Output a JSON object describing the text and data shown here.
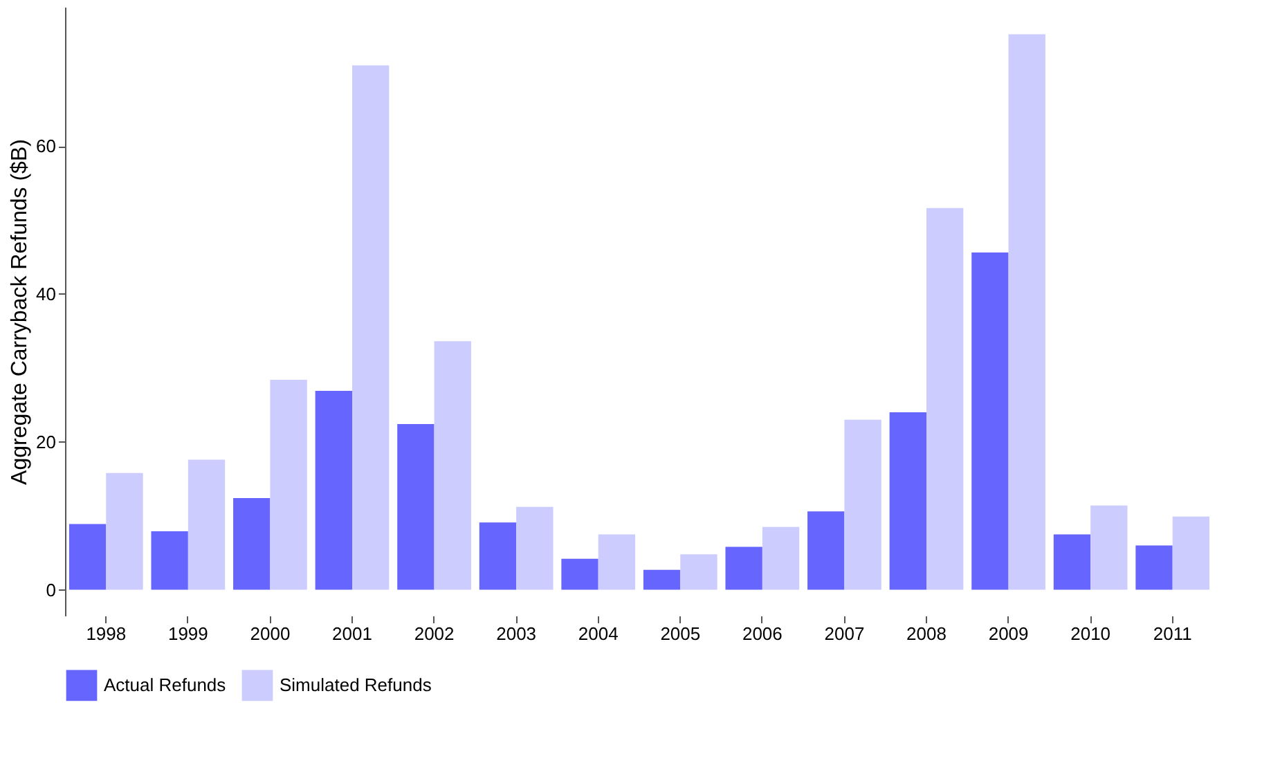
{
  "chart_data": {
    "type": "bar",
    "ylabel": "Aggregate Carryback Refunds ($B)",
    "categories": [
      "1998",
      "1999",
      "2000",
      "2001",
      "2002",
      "2003",
      "2004",
      "2005",
      "2006",
      "2007",
      "2008",
      "2009",
      "2010",
      "2011"
    ],
    "series": [
      {
        "name": "Actual Refunds",
        "color": "#6666ff",
        "values": [
          8.9,
          7.9,
          12.4,
          26.9,
          22.4,
          9.1,
          4.2,
          2.7,
          5.8,
          10.6,
          24.0,
          45.6,
          7.5,
          6.0
        ]
      },
      {
        "name": "Simulated Refunds",
        "color": "#ccccff",
        "values": [
          15.8,
          17.6,
          28.4,
          70.9,
          33.6,
          11.2,
          7.5,
          4.8,
          8.5,
          23.0,
          51.6,
          75.1,
          11.4,
          9.9
        ]
      }
    ],
    "ylim": [
      -3.5,
      78.8
    ],
    "yticks": [
      0,
      20,
      40,
      60
    ],
    "grid": false,
    "legend": "bottom"
  }
}
